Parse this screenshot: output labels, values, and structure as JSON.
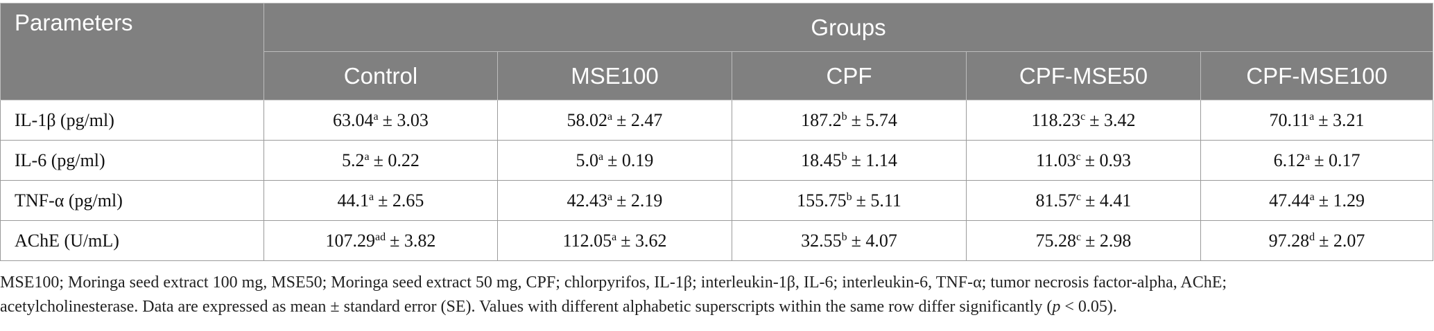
{
  "table": {
    "header": {
      "parameters": "Parameters",
      "groups": "Groups",
      "columns": [
        "Control",
        "MSE100",
        "CPF",
        "CPF-MSE50",
        "CPF-MSE100"
      ]
    },
    "rows": [
      {
        "label": "IL-1β (pg/ml)",
        "cells": [
          {
            "value": "63.04",
            "sup": "a",
            "se": "± 3.03"
          },
          {
            "value": "58.02",
            "sup": "a",
            "se": "± 2.47"
          },
          {
            "value": "187.2",
            "sup": "b",
            "se": "± 5.74"
          },
          {
            "value": "118.23",
            "sup": "c",
            "se": "± 3.42"
          },
          {
            "value": "70.11",
            "sup": "a",
            "se": "± 3.21"
          }
        ]
      },
      {
        "label": "IL-6 (pg/ml)",
        "cells": [
          {
            "value": "5.2",
            "sup": "a",
            "se": "± 0.22"
          },
          {
            "value": "5.0",
            "sup": "a",
            "se": "± 0.19"
          },
          {
            "value": "18.45",
            "sup": "b",
            "se": "± 1.14"
          },
          {
            "value": "11.03",
            "sup": "c",
            "se": "± 0.93"
          },
          {
            "value": "6.12",
            "sup": "a",
            "se": "± 0.17"
          }
        ]
      },
      {
        "label": "TNF-α (pg/ml)",
        "cells": [
          {
            "value": "44.1",
            "sup": "a",
            "se": "± 2.65"
          },
          {
            "value": "42.43",
            "sup": "a",
            "se": "± 2.19"
          },
          {
            "value": "155.75",
            "sup": "b",
            "se": "± 5.11"
          },
          {
            "value": "81.57",
            "sup": "c",
            "se": "± 4.41"
          },
          {
            "value": "47.44",
            "sup": "a",
            "se": "± 1.29"
          }
        ]
      },
      {
        "label": "AChE (U/mL)",
        "cells": [
          {
            "value": "107.29",
            "sup": "ad",
            "se": "± 3.82"
          },
          {
            "value": "112.05",
            "sup": "a",
            "se": "± 3.62"
          },
          {
            "value": "32.55",
            "sup": "b",
            "se": "± 4.07"
          },
          {
            "value": "75.28",
            "sup": "c",
            "se": "± 2.98"
          },
          {
            "value": "97.28",
            "sup": "d",
            "se": "± 2.07"
          }
        ]
      }
    ]
  },
  "footnote": {
    "line1": "MSE100; Moringa seed extract 100 mg, MSE50; Moringa seed extract 50 mg, CPF; chlorpyrifos, IL-1β; interleukin-1β, IL-6; interleukin-6, TNF-α; tumor necrosis factor-alpha, AChE;",
    "line2_pre": "acetylcholinesterase. Data are expressed as mean ± standard error (SE). Values with different alphabetic superscripts within the same row differ significantly (",
    "line2_p": "p",
    "line2_post": " < 0.05)."
  }
}
